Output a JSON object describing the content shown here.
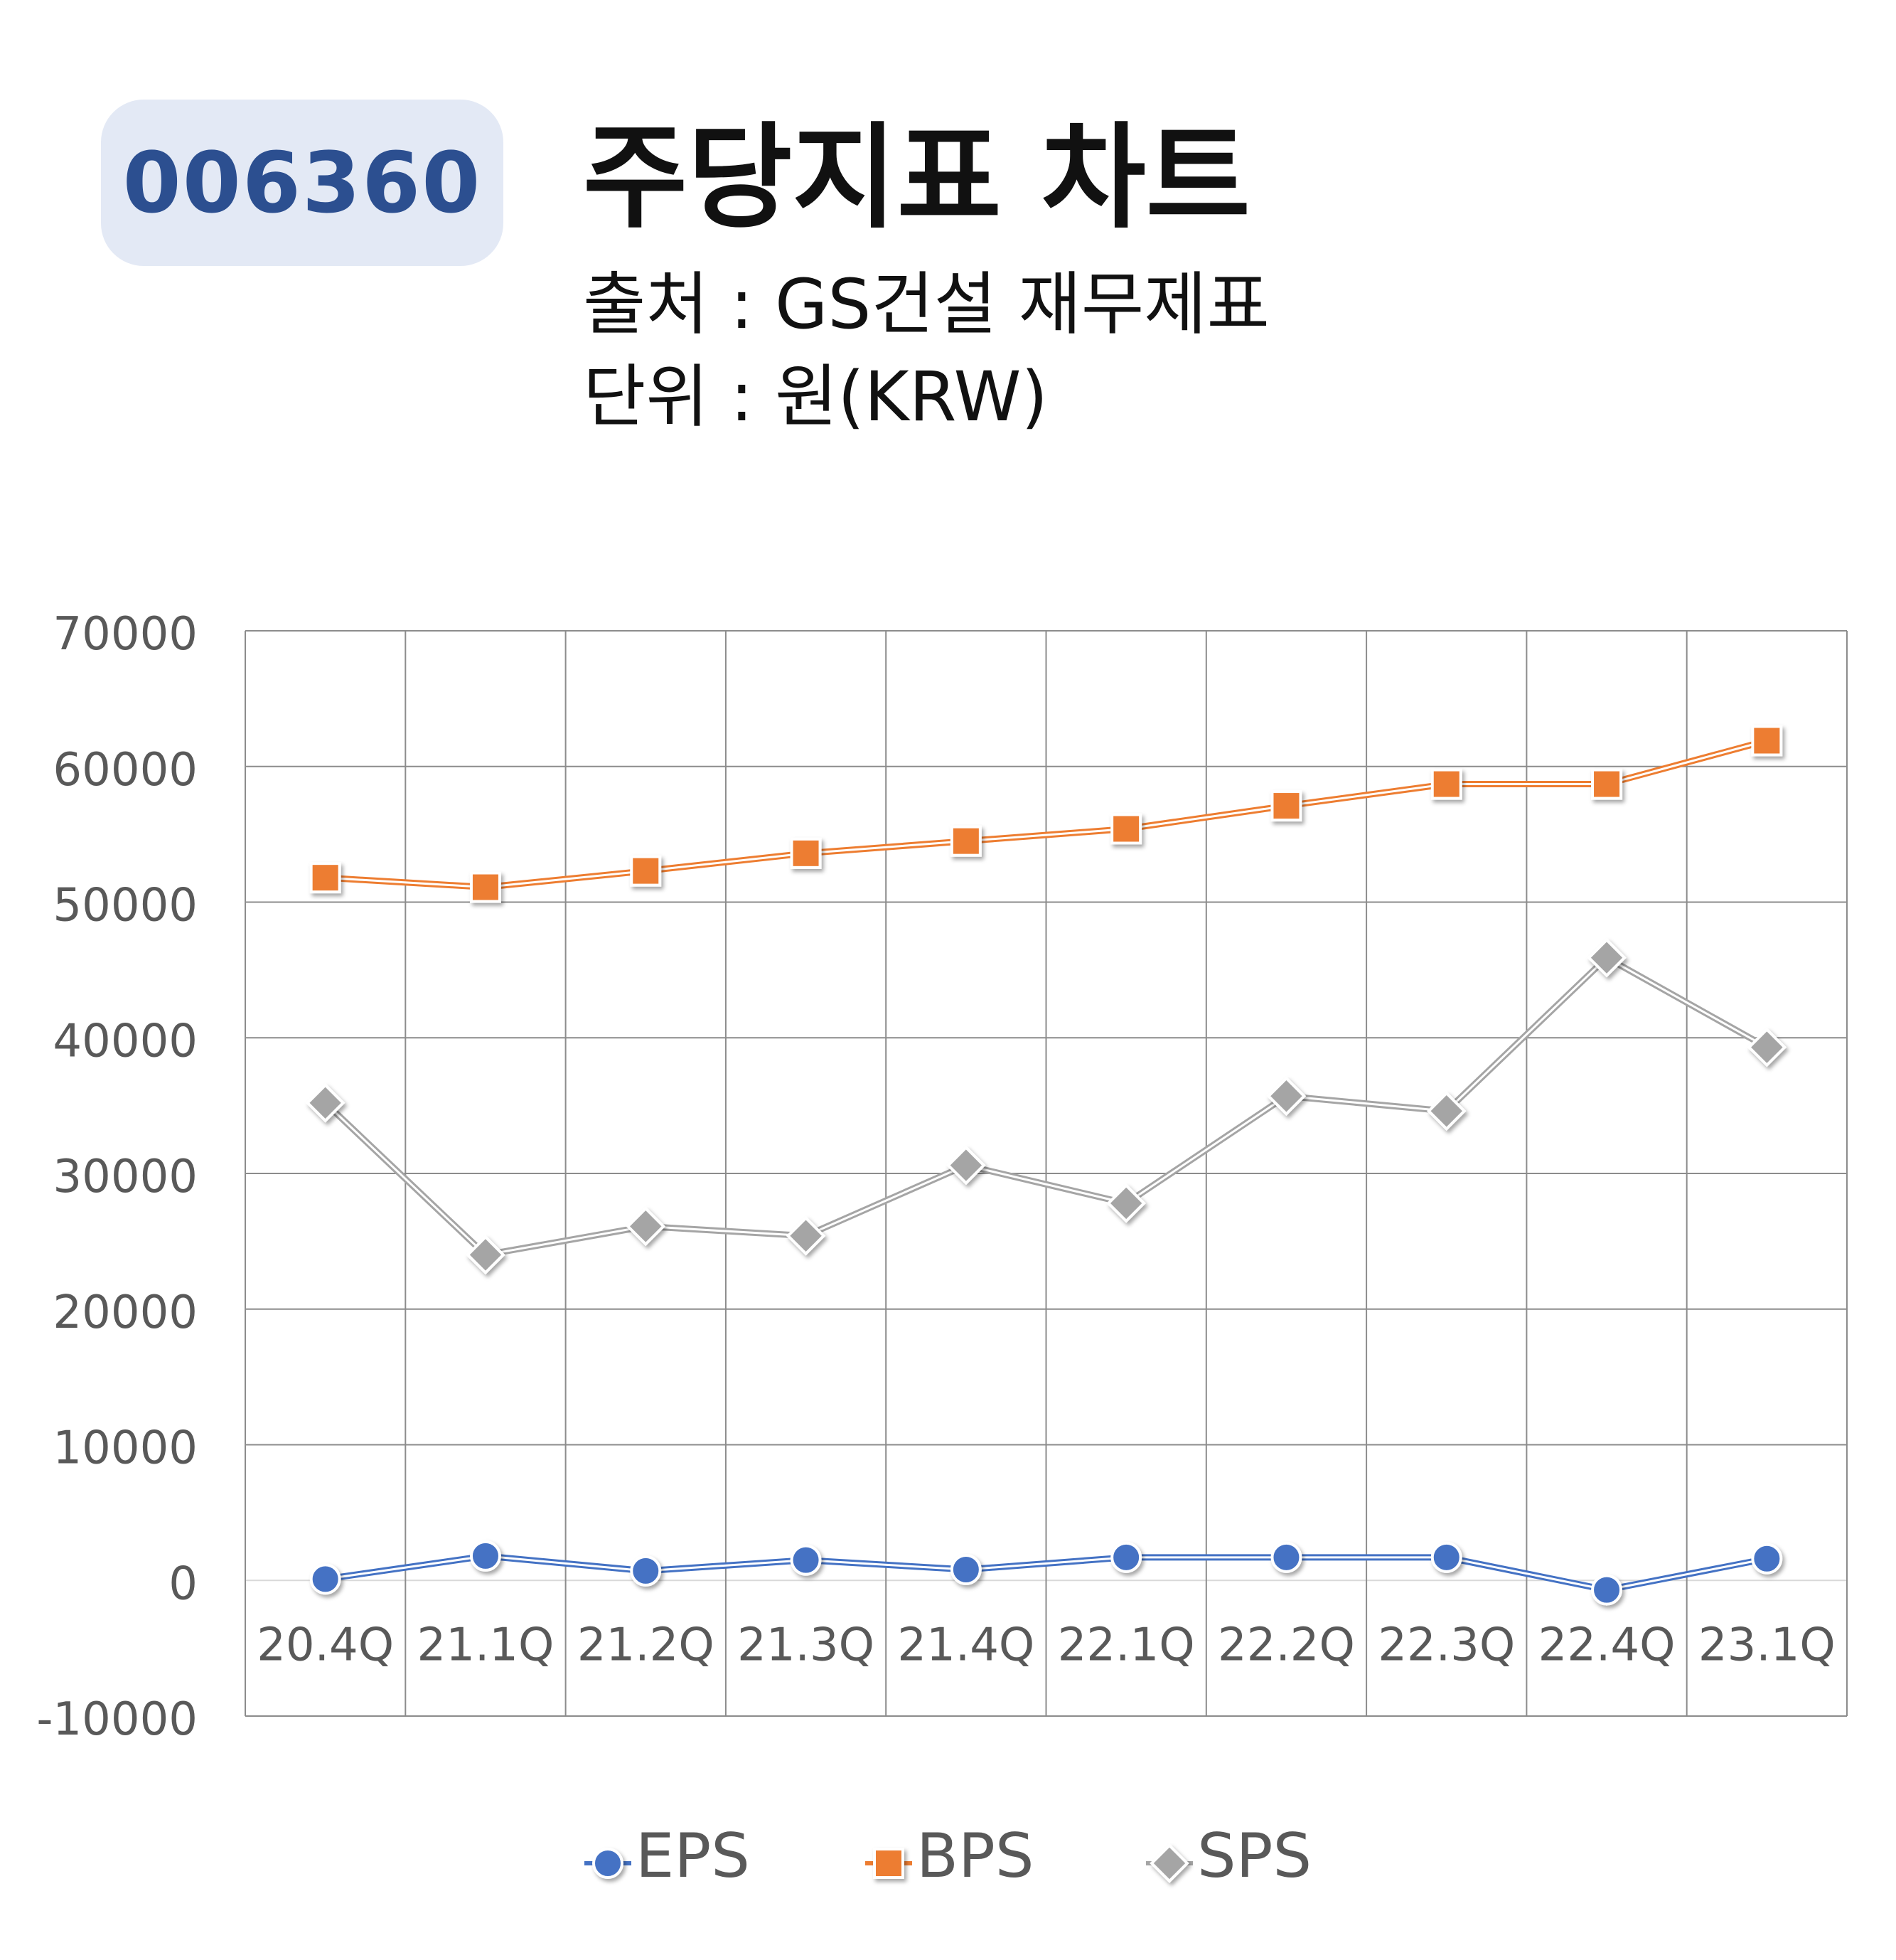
{
  "header": {
    "code": "006360",
    "title": "주당지표 차트",
    "source": "출처 : GS건설 재무제표",
    "unit": "단위 : 원(KRW)"
  },
  "chart_data": {
    "type": "line",
    "categories": [
      "20.4Q",
      "21.1Q",
      "21.2Q",
      "21.3Q",
      "21.4Q",
      "22.1Q",
      "22.2Q",
      "22.3Q",
      "22.4Q",
      "23.1Q"
    ],
    "ylim": [
      -10000,
      70000
    ],
    "yticks": [
      70000,
      60000,
      50000,
      40000,
      30000,
      20000,
      10000,
      0,
      -10000
    ],
    "grid": true,
    "legend_position": "bottom",
    "series": [
      {
        "name": "EPS",
        "color": "#4472c4",
        "marker": "circle",
        "values": [
          100,
          1800,
          700,
          1500,
          800,
          1700,
          1700,
          1700,
          -700,
          1600
        ]
      },
      {
        "name": "BPS",
        "color": "#ed7d31",
        "marker": "square",
        "values": [
          51800,
          51100,
          52300,
          53600,
          54500,
          55400,
          57100,
          58700,
          58700,
          61900
        ]
      },
      {
        "name": "SPS",
        "color": "#a5a5a5",
        "marker": "diamond",
        "values": [
          35200,
          24000,
          26100,
          25400,
          30600,
          27800,
          35700,
          34600,
          45900,
          39300
        ]
      }
    ]
  }
}
